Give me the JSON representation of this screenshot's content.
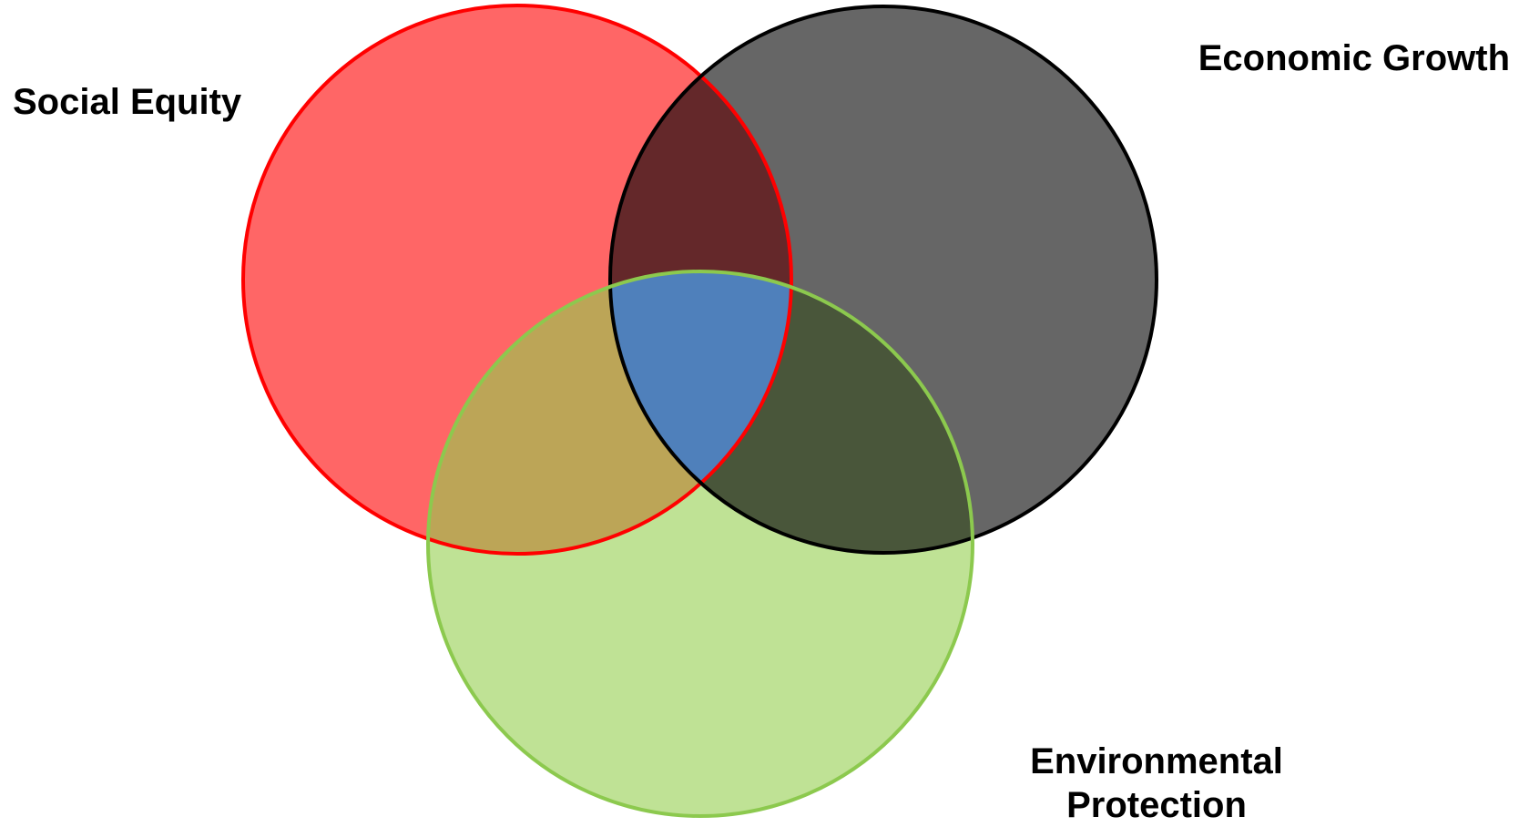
{
  "diagram": {
    "circles": [
      {
        "id": "social",
        "label": "Social Equity",
        "fill": "#ff6666",
        "stroke": "#ff0000"
      },
      {
        "id": "economic",
        "label": "Economic Growth",
        "fill": "#666666",
        "stroke": "#000000"
      },
      {
        "id": "environmental",
        "label_line1": "Environmental",
        "label_line2": "Protection",
        "fill": "#bfe295",
        "stroke": "#8cc94e"
      }
    ],
    "overlap_colors": {
      "social_economic": "#64282a",
      "social_environmental": "#bca557",
      "economic_environmental": "#49563a",
      "center": "#4f80bb"
    }
  }
}
